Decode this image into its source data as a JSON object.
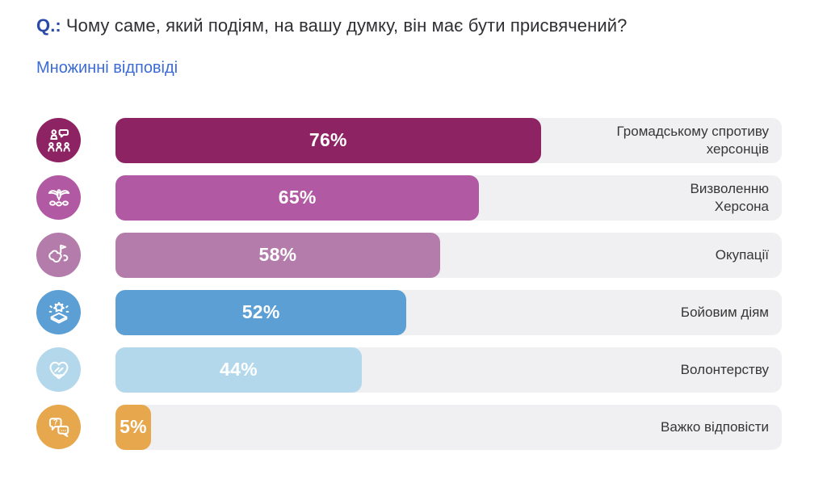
{
  "question": {
    "prefix": "Q.:",
    "text": "Чому саме, який подіям, на вашу думку, він має бути присвячений?"
  },
  "subtitle": "Множинні відповіді",
  "colors": {
    "question_prefix": "#2b4aa8",
    "subtitle": "#3c6bd6",
    "track": "#f0f0f2",
    "label_text": "#363636",
    "value_text": "#ffffff"
  },
  "chart_data": {
    "type": "bar",
    "orientation": "horizontal",
    "unit": "%",
    "grid": false,
    "legend": false,
    "xlim": [
      0,
      120
    ],
    "categories": [
      "Громадському спротиву\nхерсонців",
      "Визволенню\nХерсона",
      "Окупації",
      "Бойовим діям",
      "Волонтерству",
      "Важко відповісти"
    ],
    "values": [
      76,
      65,
      58,
      52,
      44,
      5
    ],
    "value_labels": [
      "76%",
      "65%",
      "58%",
      "52%",
      "44%",
      "5%"
    ],
    "bar_colors": [
      "#8e2363",
      "#b159a2",
      "#b37cab",
      "#5b9fd4",
      "#b3d8ec",
      "#e7a74d"
    ],
    "icons": [
      "speaker-audience-icon",
      "dove-broken-chains-icon",
      "map-flag-icon",
      "explosion-ruins-icon",
      "hands-heart-icon",
      "question-bubbles-icon"
    ]
  }
}
